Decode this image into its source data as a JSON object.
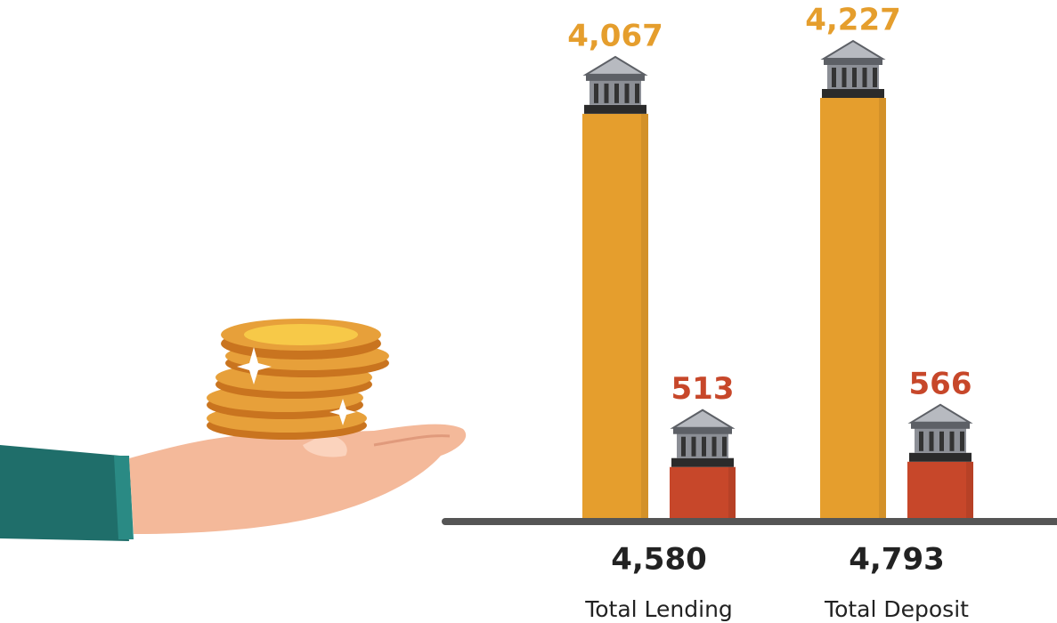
{
  "chart_data": {
    "type": "bar",
    "categories": [
      "Total Lending",
      "Total Deposit"
    ],
    "series": [
      {
        "color": "#e59e2d",
        "values": [
          4067,
          4227
        ],
        "value_labels": [
          "4,067",
          "4,227"
        ]
      },
      {
        "color": "#c7472a",
        "values": [
          513,
          566
        ],
        "value_labels": [
          "513",
          "566"
        ]
      }
    ],
    "totals": {
      "values": [
        4580,
        4793
      ],
      "value_labels": [
        "4,580",
        "4,793"
      ]
    }
  }
}
